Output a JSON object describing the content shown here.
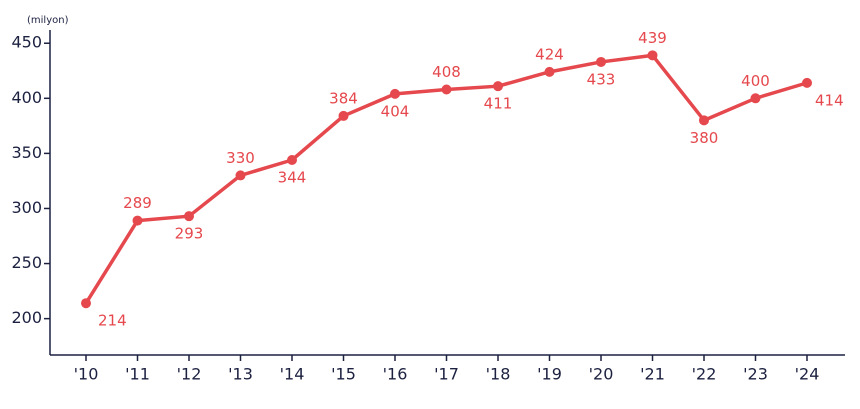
{
  "chart_data": {
    "type": "line",
    "y_label": "(milyon)",
    "categories": [
      "'10",
      "'11",
      "'12",
      "'13",
      "'14",
      "'15",
      "'16",
      "'17",
      "'18",
      "'19",
      "'20",
      "'21",
      "'22",
      "'23",
      "'24"
    ],
    "values": [
      214,
      289,
      293,
      330,
      344,
      384,
      404,
      408,
      411,
      424,
      433,
      439,
      380,
      400,
      414
    ],
    "color": "#e5484d",
    "ylim": [
      167,
      462
    ],
    "yticks": [
      200,
      250,
      300,
      350,
      400,
      450
    ],
    "grid": false
  }
}
